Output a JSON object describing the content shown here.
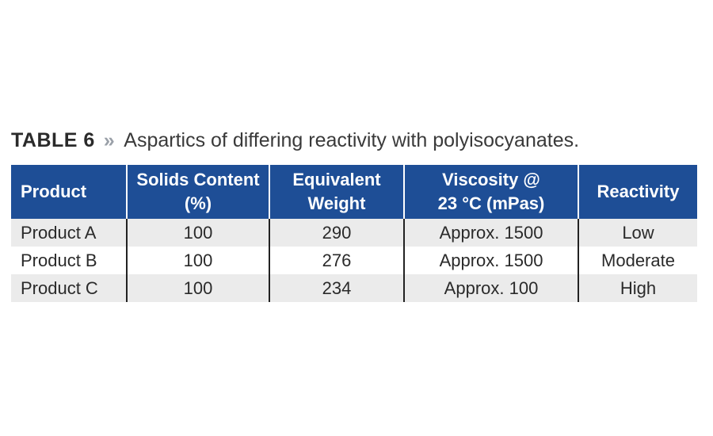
{
  "caption": {
    "label": "TABLE 6",
    "separator": "»",
    "text": "Aspartics of differing reactivity with polyisocyanates."
  },
  "table": {
    "header": {
      "product": [
        "Product"
      ],
      "solids_content": [
        "Solids Content",
        "(%)"
      ],
      "equivalent_weight": [
        "Equivalent",
        "Weight"
      ],
      "viscosity": [
        "Viscosity @",
        "23 °C (mPas)"
      ],
      "reactivity": [
        "Reactivity"
      ]
    },
    "rows": [
      {
        "product": "Product A",
        "solids_content": "100",
        "equivalent_weight": "290",
        "viscosity": "Approx. 1500",
        "reactivity": "Low"
      },
      {
        "product": "Product B",
        "solids_content": "100",
        "equivalent_weight": "276",
        "viscosity": "Approx. 1500",
        "reactivity": "Moderate"
      },
      {
        "product": "Product C",
        "solids_content": "100",
        "equivalent_weight": "234",
        "viscosity": "Approx. 100",
        "reactivity": "High"
      }
    ]
  },
  "colors": {
    "header_bg": "#1e4e96",
    "header_text": "#ffffff",
    "row_shade": "#ebebeb"
  }
}
